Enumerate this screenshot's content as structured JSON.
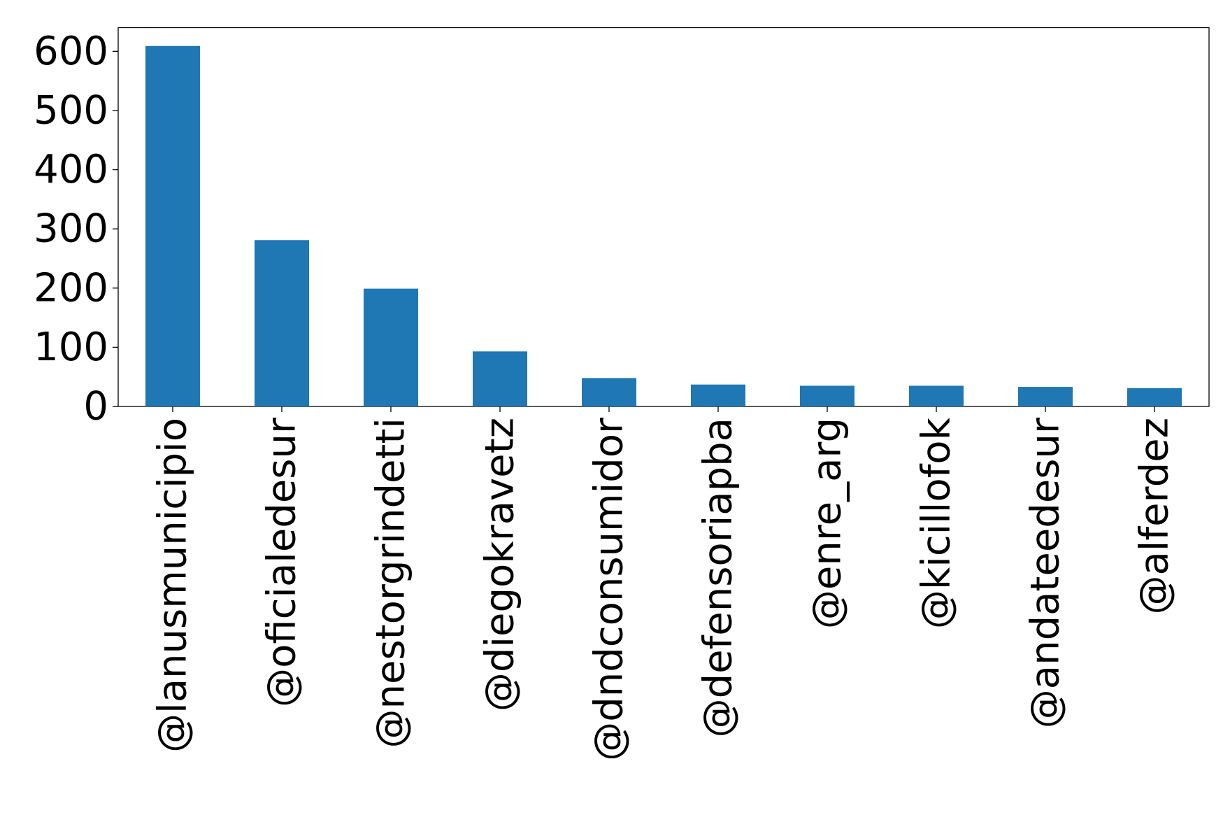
{
  "chart_data": {
    "type": "bar",
    "categories": [
      "@lanusmunicipio",
      "@oficialedesur",
      "@nestorgrindetti",
      "@diegokravetz",
      "@dndconsumidor",
      "@defensoriapba",
      "@enre_arg",
      "@kicillofok",
      "@andateedesur",
      "@alferdez"
    ],
    "values": [
      609,
      281,
      199,
      93,
      48,
      37,
      35,
      35,
      33,
      31
    ],
    "color": "#1f77b4",
    "ylim": [
      0,
      640
    ],
    "yticks": [
      0,
      100,
      200,
      300,
      400,
      500,
      600
    ],
    "grid": false
  }
}
